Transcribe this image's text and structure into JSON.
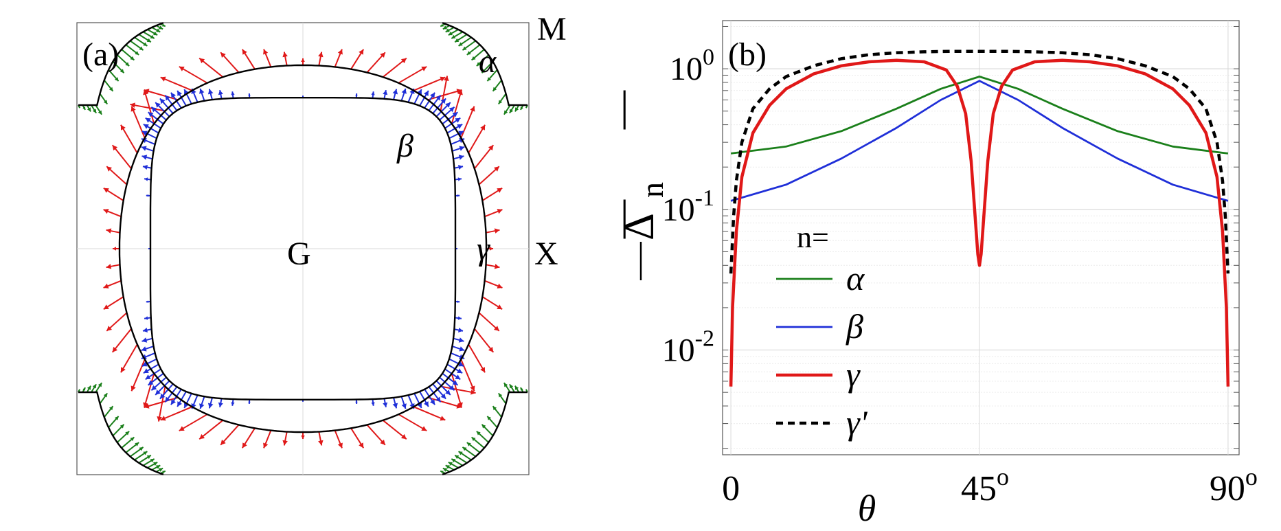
{
  "chart_data": [
    {
      "type": "vector-field",
      "panel_label": "(a)",
      "point_labels": {
        "corner": "M",
        "center": "G",
        "edge": "X"
      },
      "band_labels": {
        "alpha": "α",
        "beta": "β",
        "gamma": "γ"
      },
      "colors": {
        "alpha": "#1a7f1a",
        "beta": "#1f2fd8",
        "gamma": "#e01818",
        "fermi_surface": "#000000"
      },
      "grid": true
    },
    {
      "type": "line",
      "panel_label": "(b)",
      "title": "",
      "xlabel": "θ",
      "ylabel_main": "Δ",
      "ylabel_sub": "n",
      "x_ticks": [
        {
          "value": 0,
          "label": "0",
          "sup": ""
        },
        {
          "value": 45,
          "label": "45",
          "sup": "o"
        },
        {
          "value": 90,
          "label": "90",
          "sup": "o"
        }
      ],
      "y_ticks": [
        {
          "value": 1,
          "base": "10",
          "exp": "0"
        },
        {
          "value": 0.1,
          "base": "10",
          "exp": "-1"
        },
        {
          "value": 0.01,
          "base": "10",
          "exp": "-2"
        }
      ],
      "xlim": [
        -1.5,
        92
      ],
      "ylim": [
        0.0018,
        2.2
      ],
      "yscale": "log",
      "grid": true,
      "legend_title": "n=",
      "legend_position": "lower-left",
      "series": [
        {
          "name": "α",
          "color": "#1a7f1a",
          "dash": "",
          "x": [
            0,
            10,
            20,
            30,
            38,
            45,
            52,
            60,
            70,
            80,
            90
          ],
          "y": [
            0.25,
            0.28,
            0.36,
            0.52,
            0.72,
            0.88,
            0.72,
            0.52,
            0.36,
            0.28,
            0.25
          ]
        },
        {
          "name": "β",
          "color": "#1f2fd8",
          "dash": "",
          "x": [
            0,
            10,
            20,
            30,
            38,
            45,
            52,
            60,
            70,
            80,
            90
          ],
          "y": [
            0.115,
            0.15,
            0.23,
            0.38,
            0.6,
            0.82,
            0.6,
            0.38,
            0.23,
            0.15,
            0.115
          ]
        },
        {
          "name": "γ",
          "color": "#e01818",
          "dash": "",
          "x": [
            0,
            0.3,
            1,
            2,
            4,
            7,
            10,
            15,
            20,
            25,
            30,
            35,
            39,
            41,
            42.5,
            43.5,
            44.2,
            44.7,
            45,
            45.3,
            45.8,
            46.5,
            47.5,
            49,
            51,
            55,
            60,
            65,
            70,
            75,
            80,
            83,
            86,
            88,
            89,
            89.7,
            90
          ],
          "y": [
            0.0055,
            0.02,
            0.07,
            0.17,
            0.35,
            0.55,
            0.72,
            0.92,
            1.05,
            1.12,
            1.15,
            1.12,
            0.98,
            0.75,
            0.48,
            0.22,
            0.09,
            0.048,
            0.04,
            0.048,
            0.09,
            0.22,
            0.48,
            0.75,
            0.98,
            1.12,
            1.15,
            1.12,
            1.05,
            0.92,
            0.72,
            0.55,
            0.35,
            0.17,
            0.07,
            0.02,
            0.0055
          ]
        },
        {
          "name": "γ'",
          "color": "#000000",
          "dash": "10 7",
          "x": [
            0,
            0.5,
            1,
            2,
            4,
            7,
            10,
            15,
            20,
            25,
            30,
            35,
            40,
            45,
            50,
            55,
            60,
            65,
            70,
            75,
            80,
            83,
            86,
            88,
            89,
            89.5,
            90
          ],
          "y": [
            0.035,
            0.09,
            0.16,
            0.3,
            0.52,
            0.72,
            0.88,
            1.05,
            1.18,
            1.26,
            1.3,
            1.32,
            1.33,
            1.33,
            1.33,
            1.32,
            1.3,
            1.26,
            1.18,
            1.05,
            0.88,
            0.72,
            0.52,
            0.3,
            0.16,
            0.09,
            0.035
          ]
        }
      ]
    }
  ]
}
